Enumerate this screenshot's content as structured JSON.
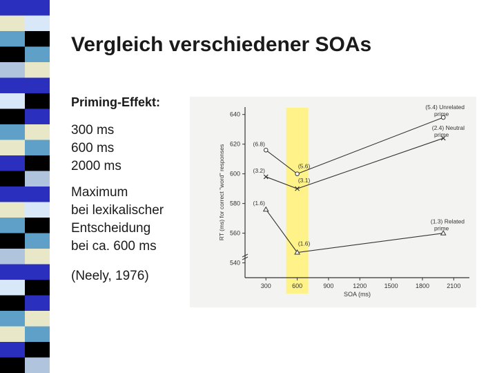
{
  "slide": {
    "title": "Vergleich verschiedener SOAs",
    "subhead": "Priming-Effekt:",
    "soa_lines": [
      "300 ms",
      "600 ms",
      "2000 ms"
    ],
    "max_lines": [
      "Maximum",
      "bei lexikalischer",
      "Entscheidung",
      "bei ca. 600 ms"
    ],
    "citation": "(Neely, 1976)"
  },
  "colors": {
    "stripe": [
      "#2a2fbd",
      "#e8e8c8",
      "#5ea0c8",
      "#000000",
      "#b0c4de",
      "#2a2fbd",
      "#d8e8f8",
      "#000000",
      "#5ea0c8",
      "#e8e8c8",
      "#2a2fbd",
      "#000000"
    ],
    "highlight": "#fff176",
    "ink": "#333333"
  },
  "chart_data": {
    "type": "line",
    "xlabel": "SOA (ms)",
    "ylabel": "RT (ms) for correct \"word\" responses",
    "x_ticks": [
      300,
      600,
      900,
      1200,
      1500,
      1800,
      2100
    ],
    "y_ticks": [
      540,
      560,
      580,
      600,
      620,
      640
    ],
    "xlim": [
      100,
      2250
    ],
    "ylim": [
      530,
      645
    ],
    "highlight_x": 600,
    "series": [
      {
        "name": "Unrelated prime",
        "legend": [
          "(5.4) Unrelated",
          "prime"
        ],
        "marker": "circle",
        "x": [
          300,
          600,
          2000
        ],
        "y": [
          616,
          600,
          638
        ],
        "labels": [
          "(6.8)",
          "(5.6)",
          ""
        ]
      },
      {
        "name": "Neutral prime",
        "legend": [
          "(2.4) Neutral",
          "prime"
        ],
        "marker": "x",
        "x": [
          300,
          600,
          2000
        ],
        "y": [
          598,
          590,
          624
        ],
        "labels": [
          "(3.2)",
          "(3.1)",
          ""
        ]
      },
      {
        "name": "Related prime",
        "legend": [
          "(1.3) Related",
          "prime"
        ],
        "marker": "triangle",
        "x": [
          300,
          600,
          2000
        ],
        "y": [
          576,
          547,
          560
        ],
        "labels": [
          "(1.6)",
          "(1.6)",
          ""
        ]
      }
    ]
  }
}
